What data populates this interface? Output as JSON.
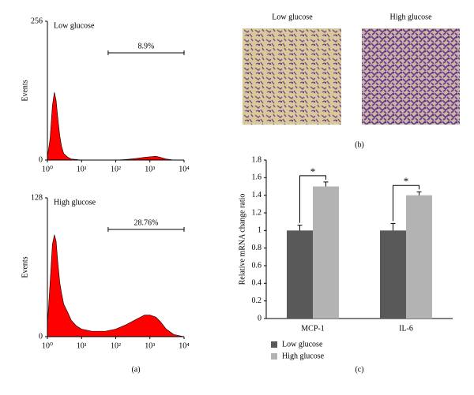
{
  "chart_data": [
    {
      "type": "area",
      "title": "Low glucose",
      "ylabel": "Events",
      "color": "#ff0000",
      "xscale": "log",
      "x": [
        1,
        1.2,
        1.4,
        1.6,
        1.8,
        2,
        2.3,
        2.6,
        3,
        4,
        5,
        7,
        10,
        20,
        50,
        100,
        200,
        400,
        700,
        1000,
        1500,
        2000,
        3000,
        5000,
        10000
      ],
      "values": [
        5,
        40,
        100,
        125,
        110,
        80,
        45,
        25,
        12,
        5,
        2,
        1,
        0,
        0,
        0,
        0,
        1,
        3,
        5,
        6,
        7,
        5,
        2,
        0,
        0
      ],
      "xlim": [
        1,
        10000
      ],
      "xticks": [
        {
          "value": 1,
          "label": "10⁰"
        },
        {
          "value": 10,
          "label": "10¹"
        },
        {
          "value": 100,
          "label": "10²"
        },
        {
          "value": 1000,
          "label": "10³"
        },
        {
          "value": 10000,
          "label": "10⁴"
        }
      ],
      "ylim": [
        0,
        256
      ],
      "yticks": [
        0,
        256
      ],
      "gate": [
        60,
        10000
      ],
      "gate_label": "8.9%"
    },
    {
      "type": "area",
      "title": "High glucose",
      "ylabel": "Events",
      "color": "#ff0000",
      "xscale": "log",
      "x": [
        1,
        1.2,
        1.4,
        1.6,
        1.8,
        2,
        2.3,
        2.6,
        3,
        4,
        5,
        7,
        10,
        20,
        50,
        100,
        200,
        400,
        700,
        1000,
        1500,
        2000,
        3000,
        5000,
        10000
      ],
      "values": [
        10,
        50,
        85,
        94,
        88,
        70,
        50,
        40,
        30,
        22,
        15,
        10,
        7,
        5,
        5,
        7,
        11,
        16,
        20,
        20,
        18,
        14,
        7,
        2,
        0
      ],
      "xlim": [
        1,
        10000
      ],
      "xticks": [
        {
          "value": 1,
          "label": "10⁰"
        },
        {
          "value": 10,
          "label": "10¹"
        },
        {
          "value": 100,
          "label": "10²"
        },
        {
          "value": 1000,
          "label": "10³"
        },
        {
          "value": 10000,
          "label": "10⁴"
        }
      ],
      "ylim": [
        0,
        128
      ],
      "yticks": [
        0,
        128
      ],
      "gate": [
        60,
        10000
      ],
      "gate_label": "28.76%"
    },
    {
      "type": "bar",
      "ylabel": "Relative mRNA change ratio",
      "categories": [
        "MCP-1",
        "IL-6"
      ],
      "series": [
        {
          "name": "Low glucose",
          "color": "#595959",
          "values": [
            1,
            1
          ],
          "errors": [
            0.06,
            0.08
          ]
        },
        {
          "name": "High glucose",
          "color": "#b3b3b3",
          "values": [
            1.5,
            1.4
          ],
          "errors": [
            0.05,
            0.04
          ]
        }
      ],
      "significance": [
        "*",
        "*"
      ],
      "ylim": [
        0,
        1.8
      ],
      "yticks": [
        0,
        0.2,
        0.4,
        0.6,
        0.8,
        1,
        1.2,
        1.4,
        1.6,
        1.8
      ],
      "legend": "bottom-left"
    }
  ],
  "images": [
    {
      "label": "Low glucose"
    },
    {
      "label": "High glucose"
    }
  ],
  "panel_labels": [
    "(a)",
    "(b)",
    "(c)"
  ]
}
